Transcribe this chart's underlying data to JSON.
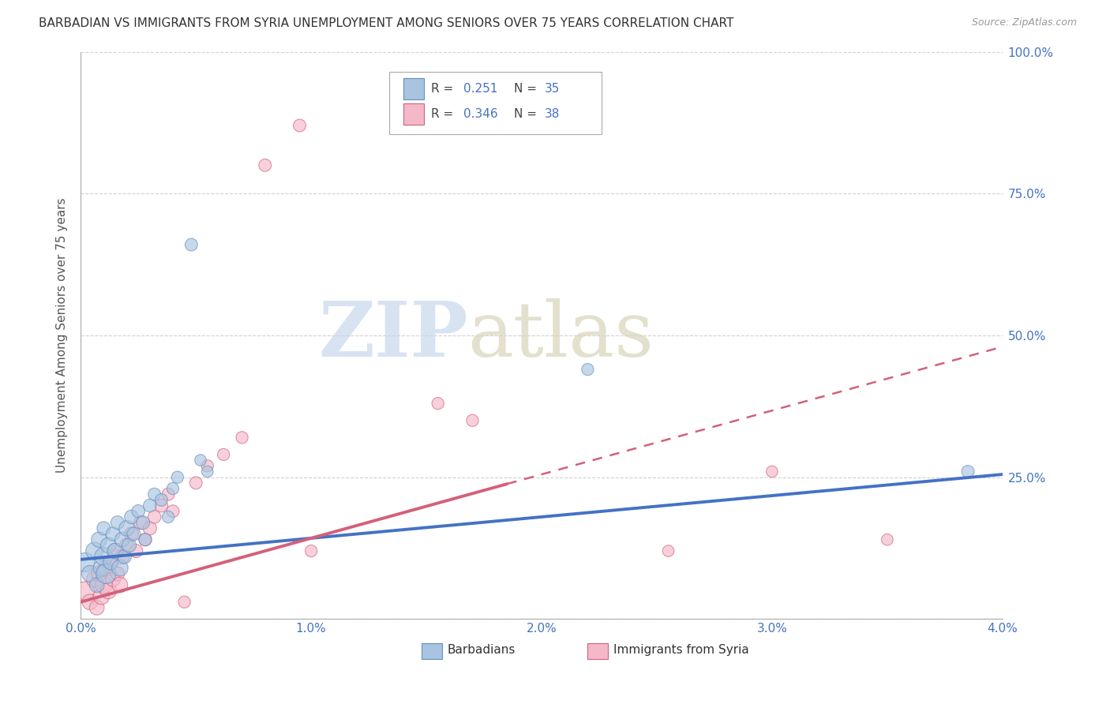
{
  "title": "BARBADIAN VS IMMIGRANTS FROM SYRIA UNEMPLOYMENT AMONG SENIORS OVER 75 YEARS CORRELATION CHART",
  "source": "Source: ZipAtlas.com",
  "ylabel": "Unemployment Among Seniors over 75 years",
  "xmin": 0.0,
  "xmax": 4.0,
  "ymin": 0.0,
  "ymax": 100.0,
  "yticks": [
    0,
    25,
    50,
    75,
    100
  ],
  "ytick_labels": [
    "",
    "25.0%",
    "50.0%",
    "75.0%",
    "100.0%"
  ],
  "xticks": [
    0.0,
    0.5,
    1.0,
    1.5,
    2.0,
    2.5,
    3.0,
    3.5,
    4.0
  ],
  "xtick_labels": [
    "0.0%",
    "",
    "1.0%",
    "",
    "2.0%",
    "",
    "3.0%",
    "",
    "4.0%"
  ],
  "label_barbadians": "Barbadians",
  "label_syria": "Immigrants from Syria",
  "blue_color": "#A8C4E0",
  "pink_color": "#F4B8C8",
  "blue_line_color": "#4472C4",
  "pink_line_color": "#D4607A",
  "blue_scatter_edge": "#6090C0",
  "pink_scatter_edge": "#D06080",
  "barbadians_x": [
    0.02,
    0.04,
    0.06,
    0.07,
    0.08,
    0.09,
    0.1,
    0.1,
    0.11,
    0.12,
    0.13,
    0.14,
    0.15,
    0.16,
    0.17,
    0.18,
    0.19,
    0.2,
    0.21,
    0.22,
    0.23,
    0.25,
    0.27,
    0.28,
    0.3,
    0.32,
    0.35,
    0.38,
    0.4,
    0.42,
    0.48,
    0.52,
    0.55,
    2.2,
    3.85
  ],
  "barbadians_y": [
    10,
    8,
    12,
    6,
    14,
    9,
    11,
    16,
    8,
    13,
    10,
    15,
    12,
    17,
    9,
    14,
    11,
    16,
    13,
    18,
    15,
    19,
    17,
    14,
    20,
    22,
    21,
    18,
    23,
    25,
    66,
    28,
    26,
    44,
    26
  ],
  "barbadians_size": [
    300,
    220,
    250,
    180,
    200,
    220,
    280,
    150,
    330,
    200,
    180,
    160,
    200,
    150,
    220,
    180,
    160,
    200,
    170,
    160,
    150,
    140,
    150,
    130,
    140,
    130,
    130,
    120,
    120,
    120,
    130,
    110,
    110,
    120,
    130
  ],
  "syria_x": [
    0.02,
    0.04,
    0.06,
    0.07,
    0.08,
    0.09,
    0.1,
    0.11,
    0.12,
    0.13,
    0.14,
    0.15,
    0.16,
    0.17,
    0.18,
    0.2,
    0.22,
    0.24,
    0.26,
    0.28,
    0.3,
    0.32,
    0.35,
    0.38,
    0.4,
    0.45,
    0.5,
    0.55,
    0.62,
    0.7,
    0.8,
    0.95,
    1.0,
    1.55,
    1.7,
    2.55,
    3.0,
    3.5
  ],
  "syria_y": [
    5,
    3,
    7,
    2,
    8,
    4,
    6,
    9,
    5,
    10,
    7,
    12,
    8,
    6,
    11,
    13,
    15,
    12,
    17,
    14,
    16,
    18,
    20,
    22,
    19,
    3,
    24,
    27,
    29,
    32,
    80,
    87,
    12,
    38,
    35,
    12,
    26,
    14
  ],
  "syria_size": [
    280,
    200,
    220,
    180,
    200,
    220,
    250,
    200,
    220,
    200,
    180,
    200,
    160,
    200,
    180,
    170,
    160,
    150,
    150,
    140,
    150,
    140,
    140,
    130,
    130,
    120,
    130,
    120,
    120,
    120,
    130,
    130,
    120,
    120,
    120,
    110,
    110,
    110
  ],
  "blue_trend_x0": 0.0,
  "blue_trend_y0": 10.5,
  "blue_trend_x1": 4.0,
  "blue_trend_y1": 25.5,
  "pink_trend_x0": 0.0,
  "pink_trend_y0": 3.0,
  "pink_trend_x1": 4.0,
  "pink_trend_y1": 48.0,
  "pink_solid_end": 1.85
}
